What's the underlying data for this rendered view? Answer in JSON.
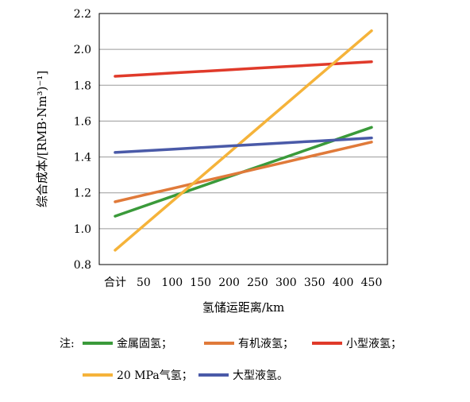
{
  "chart_data": {
    "type": "line",
    "title": "",
    "xlabel": "氢储运距离/km",
    "ylabel": "综合成本/[RMB·Nm³)⁻¹]",
    "categories": [
      "合计",
      "50",
      "100",
      "150",
      "200",
      "250",
      "300",
      "350",
      "400",
      "450"
    ],
    "x": [
      0,
      50,
      100,
      150,
      200,
      250,
      300,
      350,
      400,
      450
    ],
    "xlim": [
      0,
      450
    ],
    "ylim": [
      0.8,
      2.2
    ],
    "yticks": [
      "0.8",
      "1.0",
      "1.2",
      "1.4",
      "1.6",
      "1.8",
      "2.0",
      "2.2"
    ],
    "grid": true,
    "legend_position": "bottom",
    "legend_prefix": "注:",
    "series": [
      {
        "name": "金属固氢；",
        "color": "#3a9a3a",
        "values": [
          1.07,
          1.125,
          1.18,
          1.235,
          1.29,
          1.345,
          1.4,
          1.455,
          1.51,
          1.565
        ]
      },
      {
        "name": "有机液氢；",
        "color": "#e07a3a",
        "values": [
          1.15,
          1.187,
          1.224,
          1.261,
          1.298,
          1.335,
          1.372,
          1.409,
          1.446,
          1.483
        ]
      },
      {
        "name": "小型液氢；",
        "color": "#e03a2a",
        "values": [
          1.85,
          1.859,
          1.868,
          1.877,
          1.886,
          1.895,
          1.904,
          1.913,
          1.922,
          1.931
        ]
      },
      {
        "name": "20 MPa气氢；",
        "color": "#f5b33a",
        "values": [
          0.88,
          1.016,
          1.152,
          1.288,
          1.424,
          1.56,
          1.696,
          1.832,
          1.968,
          2.104
        ]
      },
      {
        "name": "大型液氢。",
        "color": "#4a5aa8",
        "values": [
          1.425,
          1.434,
          1.443,
          1.452,
          1.461,
          1.47,
          1.479,
          1.488,
          1.497,
          1.506
        ]
      }
    ]
  }
}
